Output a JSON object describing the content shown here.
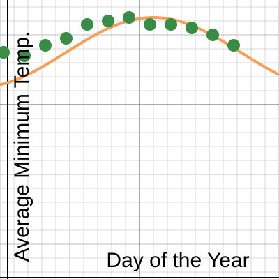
{
  "chart_data": {
    "type": "scatter",
    "title": "",
    "xlabel": "Day of the Year",
    "ylabel": "Average Minimum Temp.",
    "x_ticks_labeled": false,
    "y_ticks_labeled": false,
    "grid": true,
    "xlim": [
      -200,
      200
    ],
    "ylim": [
      -250,
      150
    ],
    "series": [
      {
        "kind": "points",
        "x": [
          -195,
          -165,
          -135,
          -105,
          -75,
          -45,
          -15,
          15,
          45,
          75,
          105,
          135
        ],
        "y": [
          75,
          70,
          85,
          95,
          115,
          120,
          125,
          115,
          115,
          110,
          100,
          85
        ]
      },
      {
        "kind": "fitted-curve",
        "model": "sinusoid",
        "center_x": 20,
        "period": 500,
        "amplitude": 50,
        "midline": 75
      }
    ],
    "colors": {
      "points": "#388c46",
      "curve": "#f5a05a",
      "grid": "#d9d9d9",
      "axis": "#000000"
    }
  }
}
